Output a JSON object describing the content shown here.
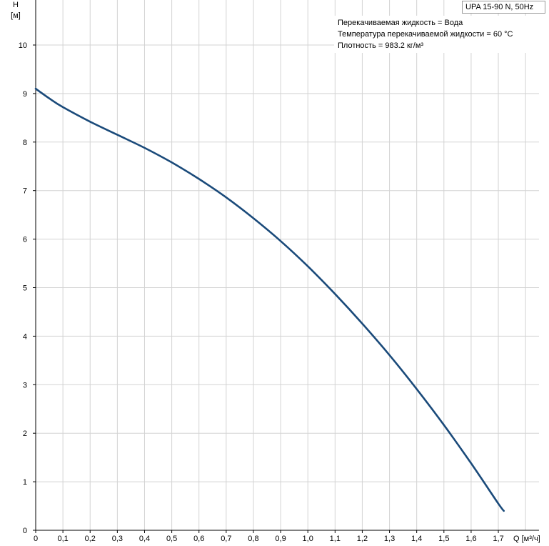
{
  "chart_data": {
    "type": "line",
    "title": "UPA 15-90 N, 50Hz",
    "annotations": [
      "Перекачиваемая жидкость = Вода",
      "Температура перекачиваемой жидкости = 60 °C",
      "Плотность = 983.2 кг/м³"
    ],
    "ylabel": "H",
    "yunit": "[м]",
    "xlabel": "Q [м³/ч]",
    "xlim": [
      0,
      1.8
    ],
    "ylim": [
      0,
      11
    ],
    "xticks": [
      "0",
      "0,1",
      "0,2",
      "0,3",
      "0,4",
      "0,5",
      "0,6",
      "0,7",
      "0,8",
      "0,9",
      "1,0",
      "1,1",
      "1,2",
      "1,3",
      "1,4",
      "1,5",
      "1,6",
      "1,7"
    ],
    "yticks": [
      "0",
      "1",
      "2",
      "3",
      "4",
      "5",
      "6",
      "7",
      "8",
      "9",
      "10"
    ],
    "grid": true,
    "line_color": "#1a4a7a",
    "series": [
      {
        "x": [
          0,
          0.05,
          0.1,
          0.2,
          0.3,
          0.4,
          0.5,
          0.6,
          0.7,
          0.8,
          0.9,
          1.0,
          1.1,
          1.2,
          1.3,
          1.4,
          1.5,
          1.6,
          1.7,
          1.72
        ],
        "values": [
          9.1,
          8.9,
          8.72,
          8.42,
          8.15,
          7.88,
          7.58,
          7.24,
          6.86,
          6.43,
          5.96,
          5.44,
          4.87,
          4.26,
          3.61,
          2.91,
          2.17,
          1.38,
          0.55,
          0.4
        ]
      }
    ]
  }
}
